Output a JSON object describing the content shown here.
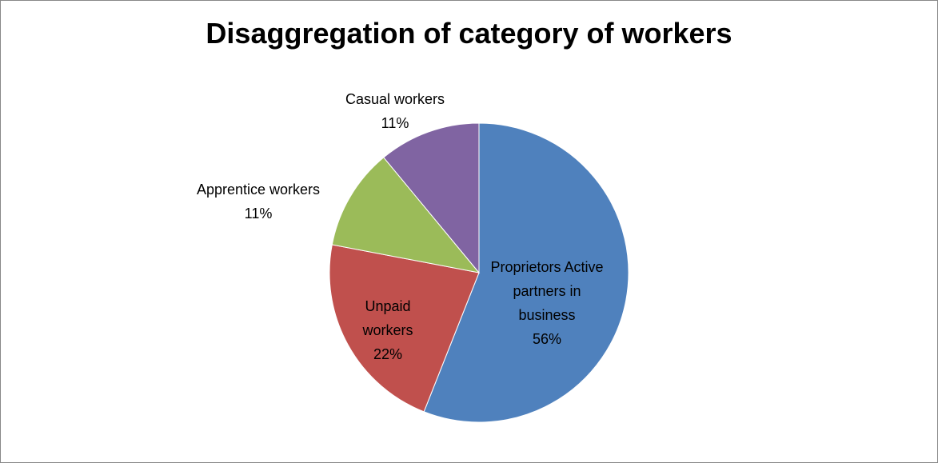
{
  "chart_data": {
    "type": "pie",
    "title": "Disaggregation of category of workers",
    "categories": [
      "Proprietors Active partners in business",
      "Unpaid workers",
      "Apprentice workers",
      "Casual workers"
    ],
    "values": [
      56,
      22,
      11,
      11
    ],
    "value_labels": [
      "56%",
      "22%",
      "11%",
      "11%"
    ],
    "colors": [
      "#4f81bd",
      "#c0504d",
      "#9bbb59",
      "#8064a2"
    ]
  }
}
